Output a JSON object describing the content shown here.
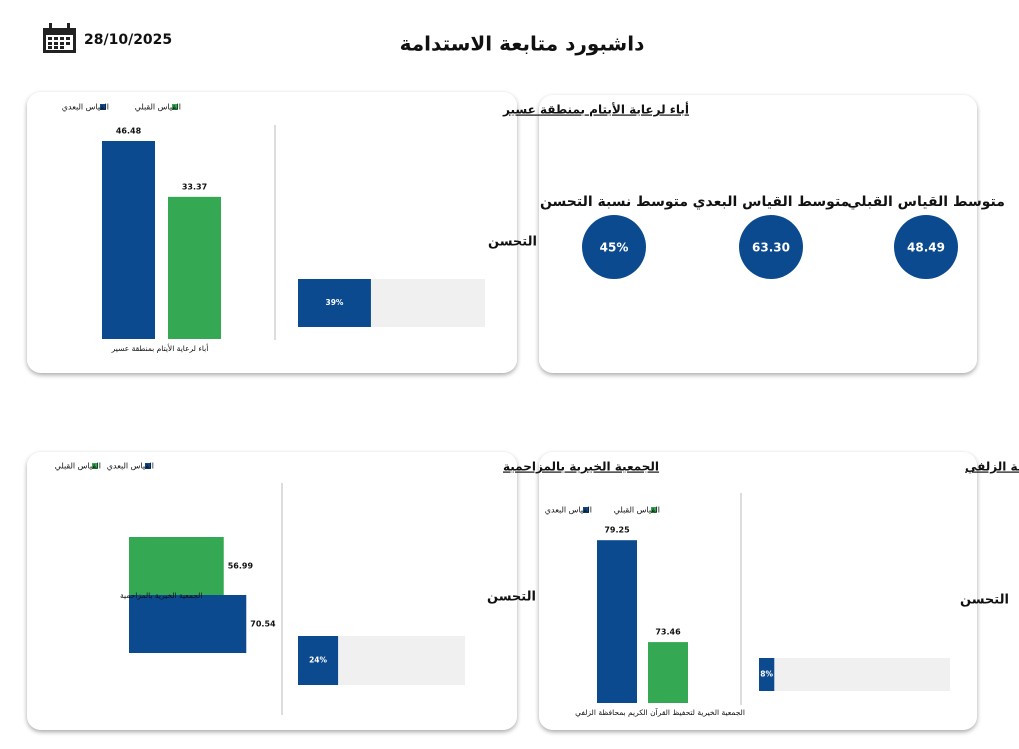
{
  "header": {
    "title": "داشبورد متابعة الاستدامة",
    "date": "28/10/2025"
  },
  "kpis": [
    {
      "label": "متوسط القياس القبلي",
      "value": 48.49
    },
    {
      "label": "متوسط القياس البعدي",
      "value": 63.3,
      "value_label": "63.30"
    },
    {
      "label": "متوسط نسبة التحسن",
      "value": 45,
      "value_label": "45%"
    }
  ],
  "chart_data": [
    {
      "type": "bar",
      "orientation": "vertical",
      "title": "أباء لرعاية الأيتام بمنطقة عسير",
      "categories": [
        "أباء لرعاية الأيتام بمنطقة عسير"
      ],
      "series": [
        {
          "name": "القياس القبلي",
          "color": "#34a853",
          "values": [
            33.37
          ]
        },
        {
          "name": "القياس البعدي",
          "color": "#0b4a8f",
          "values": [
            46.48
          ]
        }
      ],
      "ylim": [
        0,
        50
      ],
      "improvement": {
        "label": "التحسن",
        "value": 39,
        "value_label": "39%",
        "xlim": [
          0,
          100
        ]
      }
    },
    {
      "type": "bar",
      "orientation": "horizontal",
      "title": "الجمعية الخيرية بالمزاحمية",
      "categories": [
        "الجمعية الخيرية بالمزاحمية"
      ],
      "series": [
        {
          "name": "القياس القبلي",
          "color": "#34a853",
          "values": [
            56.99
          ]
        },
        {
          "name": "القياس البعدي",
          "color": "#0b4a8f",
          "values": [
            70.54
          ]
        }
      ],
      "xlim": [
        0,
        80
      ],
      "improvement": {
        "label": "التحسن",
        "value": 24,
        "value_label": "24%",
        "xlim": [
          0,
          100
        ]
      }
    },
    {
      "type": "bar",
      "orientation": "vertical",
      "title": "الجمعية الخيرية لتحفيظ القران الكريم بمحافظة الزلفي",
      "categories": [
        "الجمعية الخيرية لتحفيظ القرآن الكريم بمحافظة الزلفي"
      ],
      "series": [
        {
          "name": "القياس القبلي",
          "color": "#34a853",
          "values": [
            73.46
          ]
        },
        {
          "name": "القياس البعدي",
          "color": "#0b4a8f",
          "values": [
            79.25
          ]
        }
      ],
      "ylim": [
        70,
        80
      ],
      "improvement": {
        "label": "التحسن",
        "value": 8,
        "value_label": "8%",
        "xlim": [
          0,
          100
        ]
      }
    }
  ]
}
